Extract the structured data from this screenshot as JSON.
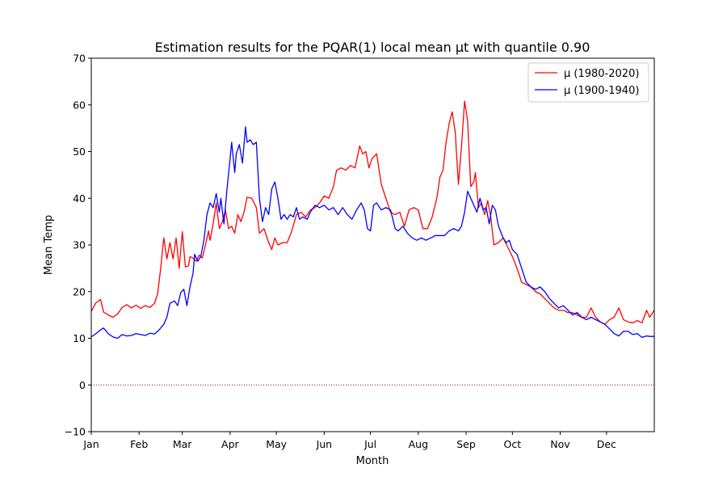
{
  "chart_data": {
    "type": "line",
    "title": "Estimation results for the PQAR(1) local mean μt with quantile 0.90",
    "xlabel": "Month",
    "ylabel": "Mean Temp",
    "xlim": [
      1,
      366
    ],
    "ylim": [
      -10,
      70
    ],
    "yticks": [
      -10,
      0,
      10,
      20,
      30,
      40,
      50,
      60,
      70
    ],
    "x_ticks": [
      {
        "label": "Jan",
        "day": 1
      },
      {
        "label": "Feb",
        "day": 32
      },
      {
        "label": "Mar",
        "day": 60
      },
      {
        "label": "Apr",
        "day": 91
      },
      {
        "label": "May",
        "day": 121
      },
      {
        "label": "Jun",
        "day": 152
      },
      {
        "label": "Jul",
        "day": 182
      },
      {
        "label": "Aug",
        "day": 213
      },
      {
        "label": "Sep",
        "day": 244
      },
      {
        "label": "Oct",
        "day": 274
      },
      {
        "label": "Nov",
        "day": 305
      },
      {
        "label": "Dec",
        "day": 335
      }
    ],
    "reference_line": {
      "y": 0,
      "style": "dotted",
      "color": "#8b0000"
    },
    "grid": false,
    "legend_position": "top-right",
    "series": [
      {
        "name": "μ (1980-2020)",
        "color": "#ff0000",
        "points": [
          [
            1,
            15.8
          ],
          [
            4,
            17.6
          ],
          [
            7,
            18.3
          ],
          [
            9,
            15.6
          ],
          [
            12,
            15.0
          ],
          [
            15,
            14.5
          ],
          [
            18,
            15.2
          ],
          [
            21,
            16.6
          ],
          [
            24,
            17.2
          ],
          [
            27,
            16.5
          ],
          [
            30,
            17.1
          ],
          [
            33,
            16.4
          ],
          [
            36,
            17.0
          ],
          [
            39,
            16.6
          ],
          [
            42,
            17.5
          ],
          [
            44,
            19.5
          ],
          [
            46,
            25.0
          ],
          [
            48,
            31.5
          ],
          [
            50,
            27.0
          ],
          [
            52,
            30.5
          ],
          [
            54,
            27.0
          ],
          [
            56,
            31.5
          ],
          [
            58,
            25.0
          ],
          [
            60,
            32.8
          ],
          [
            62,
            25.3
          ],
          [
            64,
            25.5
          ],
          [
            65,
            27.5
          ],
          [
            67,
            27.2
          ],
          [
            69,
            26.5
          ],
          [
            71,
            27.8
          ],
          [
            73,
            27.2
          ],
          [
            75,
            30.0
          ],
          [
            77,
            33.0
          ],
          [
            78,
            31.0
          ],
          [
            80,
            34.5
          ],
          [
            82,
            39.0
          ],
          [
            84,
            33.5
          ],
          [
            86,
            35.0
          ],
          [
            88,
            37.5
          ],
          [
            90,
            33.5
          ],
          [
            92,
            34.0
          ],
          [
            94,
            32.5
          ],
          [
            96,
            36.5
          ],
          [
            98,
            35.0
          ],
          [
            100,
            37.0
          ],
          [
            102,
            40.2
          ],
          [
            105,
            40.0
          ],
          [
            108,
            38.0
          ],
          [
            110,
            32.5
          ],
          [
            113,
            33.5
          ],
          [
            116,
            30.5
          ],
          [
            118,
            29.0
          ],
          [
            120,
            31.5
          ],
          [
            122,
            30.0
          ],
          [
            125,
            30.5
          ],
          [
            128,
            30.5
          ],
          [
            131,
            33.0
          ],
          [
            134,
            36.5
          ],
          [
            137,
            37.0
          ],
          [
            140,
            36.0
          ],
          [
            143,
            37.5
          ],
          [
            146,
            38.0
          ],
          [
            149,
            39.0
          ],
          [
            152,
            40.5
          ],
          [
            155,
            40.0
          ],
          [
            158,
            42.5
          ],
          [
            160,
            46.0
          ],
          [
            163,
            46.5
          ],
          [
            166,
            46.0
          ],
          [
            169,
            47.0
          ],
          [
            172,
            46.5
          ],
          [
            175,
            51.2
          ],
          [
            177,
            49.5
          ],
          [
            179,
            50.0
          ],
          [
            181,
            46.5
          ],
          [
            183,
            48.5
          ],
          [
            186,
            49.5
          ],
          [
            189,
            43.0
          ],
          [
            192,
            40.0
          ],
          [
            195,
            37.0
          ],
          [
            198,
            36.5
          ],
          [
            201,
            37.0
          ],
          [
            204,
            34.0
          ],
          [
            207,
            37.5
          ],
          [
            210,
            38.0
          ],
          [
            213,
            37.5
          ],
          [
            216,
            33.5
          ],
          [
            219,
            33.5
          ],
          [
            222,
            36.0
          ],
          [
            225,
            40.0
          ],
          [
            227,
            44.5
          ],
          [
            229,
            46.0
          ],
          [
            231,
            52.0
          ],
          [
            233,
            56.0
          ],
          [
            235,
            58.5
          ],
          [
            237,
            54.0
          ],
          [
            239,
            43.0
          ],
          [
            241,
            51.0
          ],
          [
            243,
            60.8
          ],
          [
            245,
            56.5
          ],
          [
            247,
            42.5
          ],
          [
            249,
            43.5
          ],
          [
            250,
            45.5
          ],
          [
            252,
            38.0
          ],
          [
            254,
            39.0
          ],
          [
            256,
            36.5
          ],
          [
            258,
            39.5
          ],
          [
            260,
            36.0
          ],
          [
            262,
            30.0
          ],
          [
            265,
            30.5
          ],
          [
            268,
            31.5
          ],
          [
            271,
            29.5
          ],
          [
            274,
            27.5
          ],
          [
            277,
            25.0
          ],
          [
            280,
            22.0
          ],
          [
            283,
            21.5
          ],
          [
            286,
            21.0
          ],
          [
            289,
            20.0
          ],
          [
            292,
            19.5
          ],
          [
            295,
            18.5
          ],
          [
            298,
            17.5
          ],
          [
            301,
            16.5
          ],
          [
            304,
            16.0
          ],
          [
            307,
            16.0
          ],
          [
            310,
            15.5
          ],
          [
            313,
            15.5
          ],
          [
            316,
            15.0
          ],
          [
            319,
            14.5
          ],
          [
            322,
            14.5
          ],
          [
            325,
            16.5
          ],
          [
            328,
            14.5
          ],
          [
            331,
            13.5
          ],
          [
            334,
            13.0
          ],
          [
            337,
            14.0
          ],
          [
            340,
            14.5
          ],
          [
            343,
            16.5
          ],
          [
            346,
            14.0
          ],
          [
            349,
            13.5
          ],
          [
            352,
            13.3
          ],
          [
            355,
            13.8
          ],
          [
            358,
            13.3
          ],
          [
            361,
            16.0
          ],
          [
            363,
            14.5
          ],
          [
            366,
            16.0
          ]
        ]
      },
      {
        "name": "μ (1900-1940)",
        "color": "#0000ff",
        "points": [
          [
            1,
            10.3
          ],
          [
            4,
            11.0
          ],
          [
            7,
            11.8
          ],
          [
            9,
            12.2
          ],
          [
            12,
            11.0
          ],
          [
            15,
            10.3
          ],
          [
            18,
            10.0
          ],
          [
            21,
            10.8
          ],
          [
            24,
            10.5
          ],
          [
            27,
            10.6
          ],
          [
            30,
            11.0
          ],
          [
            33,
            10.8
          ],
          [
            36,
            10.6
          ],
          [
            39,
            11.1
          ],
          [
            42,
            10.9
          ],
          [
            45,
            11.8
          ],
          [
            48,
            13.0
          ],
          [
            50,
            14.5
          ],
          [
            52,
            17.5
          ],
          [
            55,
            18.0
          ],
          [
            57,
            17.0
          ],
          [
            59,
            19.8
          ],
          [
            61,
            20.5
          ],
          [
            63,
            17.0
          ],
          [
            65,
            21.0
          ],
          [
            67,
            24.0
          ],
          [
            68,
            28.0
          ],
          [
            70,
            26.5
          ],
          [
            72,
            27.5
          ],
          [
            74,
            31.0
          ],
          [
            76,
            36.5
          ],
          [
            78,
            39.0
          ],
          [
            80,
            38.0
          ],
          [
            82,
            41.0
          ],
          [
            84,
            37.0
          ],
          [
            85,
            40.0
          ],
          [
            87,
            34.5
          ],
          [
            89,
            42.0
          ],
          [
            91,
            48.5
          ],
          [
            92,
            52.0
          ],
          [
            94,
            45.5
          ],
          [
            95,
            49.5
          ],
          [
            97,
            51.5
          ],
          [
            99,
            47.5
          ],
          [
            101,
            55.3
          ],
          [
            102,
            52.0
          ],
          [
            104,
            52.5
          ],
          [
            106,
            51.5
          ],
          [
            108,
            52.0
          ],
          [
            110,
            40.0
          ],
          [
            112,
            35.0
          ],
          [
            114,
            38.0
          ],
          [
            116,
            36.5
          ],
          [
            118,
            42.0
          ],
          [
            120,
            43.5
          ],
          [
            122,
            40.0
          ],
          [
            124,
            35.5
          ],
          [
            126,
            36.5
          ],
          [
            128,
            35.5
          ],
          [
            130,
            36.5
          ],
          [
            132,
            36.0
          ],
          [
            134,
            38.0
          ],
          [
            136,
            35.5
          ],
          [
            138,
            36.0
          ],
          [
            141,
            35.5
          ],
          [
            143,
            37.0
          ],
          [
            146,
            38.5
          ],
          [
            149,
            38.0
          ],
          [
            152,
            38.5
          ],
          [
            155,
            37.5
          ],
          [
            158,
            38.0
          ],
          [
            161,
            36.5
          ],
          [
            164,
            38.0
          ],
          [
            167,
            36.5
          ],
          [
            170,
            35.5
          ],
          [
            173,
            37.5
          ],
          [
            176,
            39.0
          ],
          [
            178,
            37.5
          ],
          [
            180,
            33.5
          ],
          [
            182,
            33.0
          ],
          [
            184,
            38.5
          ],
          [
            186,
            39.0
          ],
          [
            189,
            37.5
          ],
          [
            192,
            38.0
          ],
          [
            195,
            37.5
          ],
          [
            198,
            33.5
          ],
          [
            200,
            33.0
          ],
          [
            203,
            34.0
          ],
          [
            206,
            32.5
          ],
          [
            209,
            31.5
          ],
          [
            212,
            31.0
          ],
          [
            215,
            31.5
          ],
          [
            218,
            31.0
          ],
          [
            221,
            31.5
          ],
          [
            224,
            32.0
          ],
          [
            227,
            32.0
          ],
          [
            230,
            32.0
          ],
          [
            233,
            33.0
          ],
          [
            236,
            33.5
          ],
          [
            239,
            33.0
          ],
          [
            241,
            34.0
          ],
          [
            243,
            37.0
          ],
          [
            245,
            41.5
          ],
          [
            247,
            40.0
          ],
          [
            249,
            38.5
          ],
          [
            251,
            37.0
          ],
          [
            253,
            40.0
          ],
          [
            255,
            37.5
          ],
          [
            257,
            38.0
          ],
          [
            259,
            34.5
          ],
          [
            261,
            38.5
          ],
          [
            263,
            37.5
          ],
          [
            265,
            34.0
          ],
          [
            268,
            31.5
          ],
          [
            270,
            30.5
          ],
          [
            272,
            31.0
          ],
          [
            274,
            29.0
          ],
          [
            277,
            28.0
          ],
          [
            280,
            25.0
          ],
          [
            283,
            22.0
          ],
          [
            286,
            21.0
          ],
          [
            289,
            20.5
          ],
          [
            292,
            21.0
          ],
          [
            295,
            20.0
          ],
          [
            298,
            18.5
          ],
          [
            301,
            17.5
          ],
          [
            304,
            16.5
          ],
          [
            307,
            17.0
          ],
          [
            310,
            16.0
          ],
          [
            313,
            15.0
          ],
          [
            316,
            15.5
          ],
          [
            319,
            14.5
          ],
          [
            322,
            14.0
          ],
          [
            325,
            14.5
          ],
          [
            328,
            14.0
          ],
          [
            331,
            13.5
          ],
          [
            334,
            13.0
          ],
          [
            337,
            12.0
          ],
          [
            340,
            11.0
          ],
          [
            343,
            10.5
          ],
          [
            346,
            11.5
          ],
          [
            349,
            11.5
          ],
          [
            352,
            10.8
          ],
          [
            355,
            11.0
          ],
          [
            358,
            10.2
          ],
          [
            361,
            10.5
          ],
          [
            363,
            10.4
          ],
          [
            366,
            10.4
          ]
        ]
      }
    ]
  }
}
